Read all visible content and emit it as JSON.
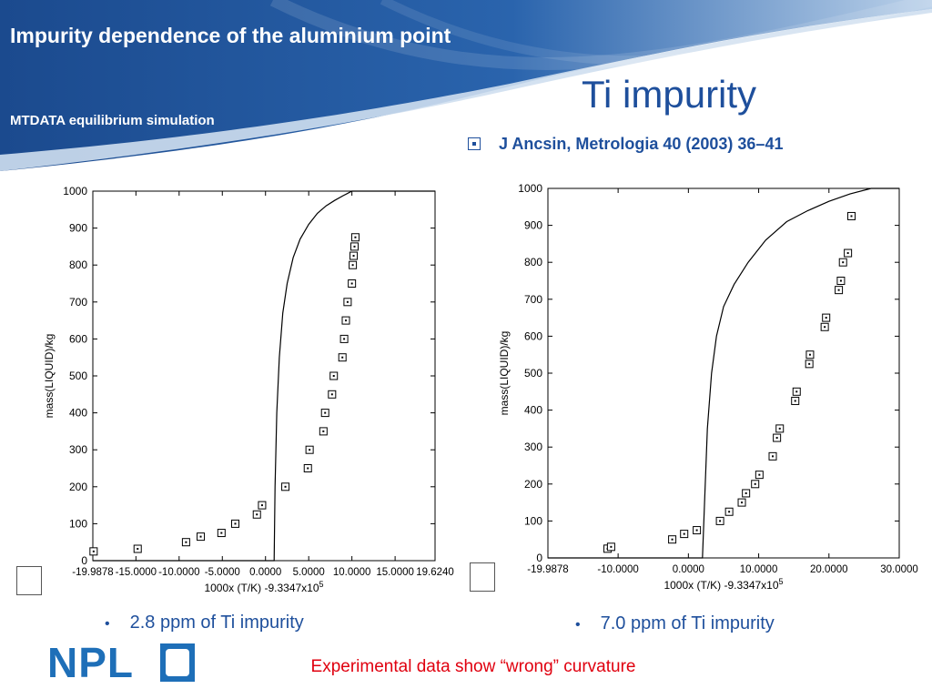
{
  "header": {
    "title": "Impurity dependence of the aluminium point",
    "subtitle": "MTDATA equilibrium simulation"
  },
  "slide_title": "Ti impurity",
  "reference": "J Ancsin, Metrologia 40 (2003) 36–41",
  "bullets": [
    "2.8 ppm of Ti impurity",
    "7.0 ppm of Ti impurity"
  ],
  "conclusion": "Experimental data show “wrong” curvature",
  "logo": {
    "text": "NPL"
  },
  "colors": {
    "banner": "#1e4f9c",
    "title": "#1e4f9c",
    "conclusion": "#e0000f"
  },
  "chart_data": [
    {
      "type": "scatter",
      "ylabel": "mass(LIQUID)/kg",
      "xlabel": "1000x (T/K) -9.3347x10",
      "xlabel_sup": "5",
      "xlim": [
        -19.9878,
        19.624
      ],
      "ylim": [
        0,
        1000
      ],
      "xticks": [
        -19.9878,
        -15.0,
        -10.0,
        -5.0,
        0.0,
        5.0,
        10.0,
        15.0,
        19.624
      ],
      "xtick_labels": [
        "-19.9878",
        "-15.0000",
        "-10.0000",
        "-5.0000",
        "0.0000",
        "5.0000",
        "10.0000",
        "15.0000",
        "19.6240"
      ],
      "yticks": [
        0,
        100,
        200,
        300,
        400,
        500,
        600,
        700,
        800,
        900,
        1000
      ],
      "series": [
        {
          "kind": "line",
          "x": [
            -19.9878,
            1.0,
            1.1,
            1.3,
            1.6,
            2.0,
            2.5,
            3.2,
            4.0,
            5.0,
            6.0,
            7.0,
            8.0,
            9.0,
            10.0,
            12.0,
            19.624
          ],
          "y": [
            0,
            0,
            200,
            400,
            550,
            670,
            750,
            820,
            870,
            910,
            940,
            960,
            975,
            988,
            1000,
            1000,
            1000
          ]
        },
        {
          "kind": "markers",
          "x": [
            -19.9,
            -14.8,
            -9.2,
            -7.5,
            -5.1,
            -3.5,
            -1.0,
            -0.4,
            2.3,
            4.9,
            5.1,
            6.7,
            6.9,
            7.7,
            7.9,
            8.9,
            9.1,
            9.3,
            9.5,
            10.0,
            10.1,
            10.2,
            10.3,
            10.4
          ],
          "y": [
            25,
            32,
            50,
            65,
            75,
            100,
            125,
            150,
            200,
            250,
            300,
            350,
            400,
            450,
            500,
            550,
            600,
            650,
            700,
            750,
            800,
            825,
            850,
            875
          ]
        }
      ]
    },
    {
      "type": "scatter",
      "ylabel": "mass(LIQUID)/kg",
      "xlabel": "1000x (T/K) -9.3347x10",
      "xlabel_sup": "5",
      "xlim": [
        -19.9878,
        30.0
      ],
      "ylim": [
        0,
        1000
      ],
      "xticks": [
        -19.9878,
        -10.0,
        0.0,
        10.0,
        20.0,
        30.0
      ],
      "xtick_labels": [
        "-19.9878",
        "-10.0000",
        "0.0000",
        "10.0000",
        "20.0000",
        "30.0000"
      ],
      "yticks": [
        0,
        100,
        200,
        300,
        400,
        500,
        600,
        700,
        800,
        900,
        1000
      ],
      "series": [
        {
          "kind": "line",
          "x": [
            -19.9878,
            2.0,
            2.3,
            2.7,
            3.3,
            4.0,
            5.0,
            6.5,
            8.5,
            11.0,
            14.0,
            17.0,
            20.0,
            23.0,
            26.0,
            30.0
          ],
          "y": [
            0,
            0,
            150,
            350,
            500,
            600,
            680,
            740,
            800,
            860,
            910,
            940,
            965,
            985,
            1000,
            1000
          ]
        },
        {
          "kind": "markers",
          "x": [
            -11.5,
            -11.0,
            -2.3,
            -0.6,
            1.2,
            4.5,
            5.8,
            7.6,
            8.2,
            9.5,
            10.1,
            12.0,
            12.6,
            13.0,
            15.2,
            15.4,
            17.2,
            17.3,
            19.4,
            19.6,
            21.4,
            21.7,
            22.0,
            22.7,
            23.2
          ],
          "y": [
            25,
            30,
            50,
            65,
            75,
            100,
            125,
            150,
            175,
            200,
            225,
            275,
            325,
            350,
            425,
            450,
            525,
            550,
            625,
            650,
            725,
            750,
            800,
            825,
            925
          ]
        }
      ]
    }
  ]
}
